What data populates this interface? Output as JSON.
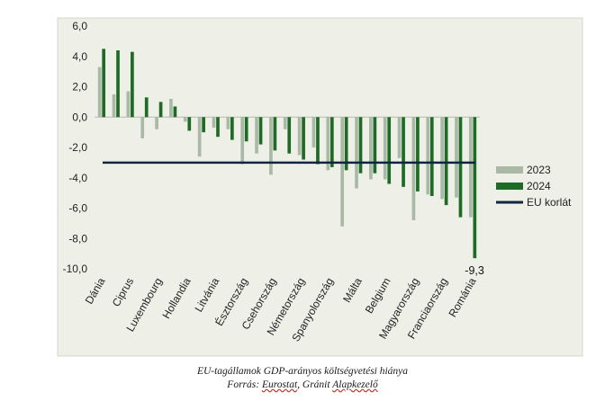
{
  "chart_data": {
    "type": "bar",
    "categories": [
      "Dánia",
      "",
      "Ciprus",
      "",
      "Luxembourg",
      "",
      "Hollandia",
      "",
      "Litvánia",
      "",
      "Észtország",
      "",
      "Csehország",
      "",
      "Németország",
      "",
      "Spanyolország",
      "",
      "Málta",
      "",
      "Belgium",
      "",
      "Magyarország",
      "",
      "Franciaország",
      "",
      "Románia"
    ],
    "series": [
      {
        "name": "2023",
        "color": "#a9b9a6",
        "values": [
          3.3,
          1.5,
          1.7,
          -1.4,
          -0.8,
          1.2,
          -0.3,
          -2.6,
          -0.7,
          -0.8,
          -3.1,
          -2.4,
          -3.8,
          -0.8,
          -2.5,
          -2.0,
          -3.5,
          -7.2,
          -4.7,
          -4.1,
          -4.1,
          -2.7,
          -6.8,
          -5.1,
          -5.4,
          -5.3,
          -6.6
        ]
      },
      {
        "name": "2024",
        "color": "#1f6b26",
        "values": [
          4.5,
          4.4,
          4.3,
          1.3,
          1.0,
          0.7,
          -0.9,
          -1.0,
          -1.3,
          -1.5,
          -1.6,
          -1.8,
          -2.2,
          -2.4,
          -2.8,
          -3.1,
          -3.3,
          -3.5,
          -3.7,
          -3.7,
          -4.4,
          -4.6,
          -4.9,
          -5.2,
          -5.8,
          -6.6,
          -9.3
        ]
      }
    ],
    "reference_line": {
      "name": "EU korlát",
      "value": -3.0,
      "color": "#0f2640"
    },
    "yticks": [
      "6,0",
      "4,0",
      "2,0",
      "0,0",
      "-2,0",
      "-4,0",
      "-6,0",
      "-8,0",
      "-10,0"
    ],
    "ylim": [
      -10,
      6
    ],
    "annotation": "-9,3",
    "legend_position": "right",
    "grid": false,
    "plot_background": "#eef0e8"
  },
  "caption": {
    "line1": "EU-tagállamok GDP-arányos költségvetési hiánya",
    "line2_prefix": "Forrás: ",
    "line2_eurostat": "Eurostat",
    "line2_suffix": ", Gránit ",
    "line2_alap": "Alapkezelő"
  }
}
